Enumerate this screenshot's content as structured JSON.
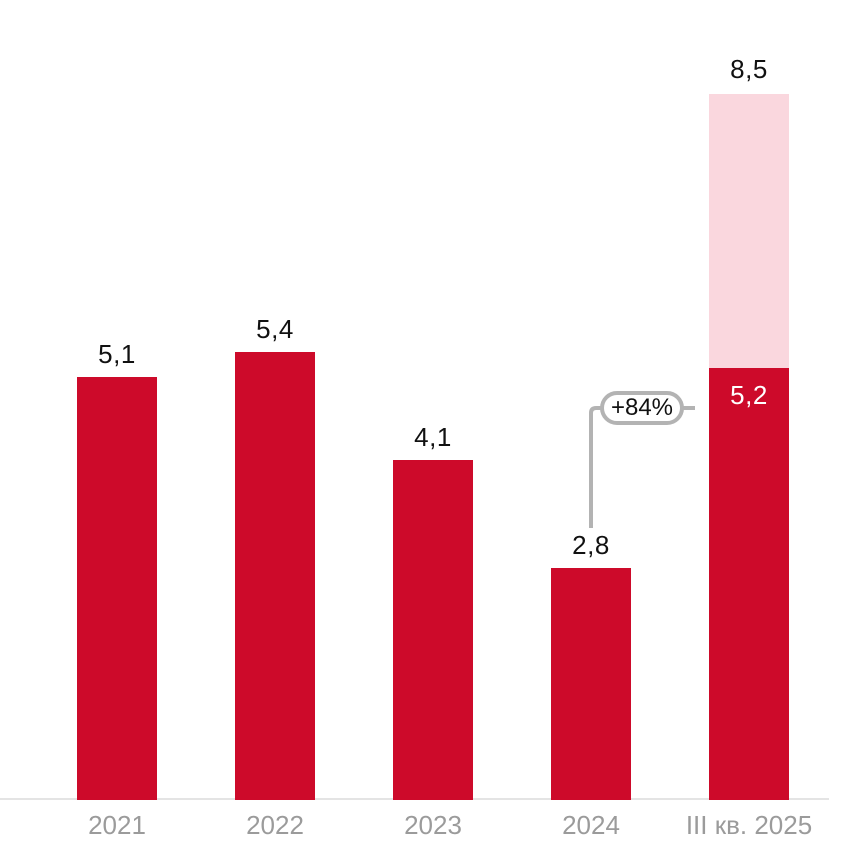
{
  "chart_data": {
    "type": "bar",
    "categories": [
      "2021",
      "2022",
      "2023",
      "2024",
      "III кв. 2025"
    ],
    "series": [
      {
        "name": "actual",
        "values": [
          5.1,
          5.4,
          4.1,
          2.8,
          5.2
        ]
      },
      {
        "name": "stack-extension",
        "values": [
          0,
          0,
          0,
          0,
          3.3
        ]
      }
    ],
    "bar_labels": [
      "5,1",
      "5,4",
      "4,1",
      "2,8",
      "5,2"
    ],
    "stack_total_value": 8.5,
    "stack_total_label": "8,5",
    "annotation": {
      "text": "+84%",
      "from_category": "2024",
      "to_category": "III кв. 2025"
    },
    "title": "",
    "xlabel": "",
    "ylabel": "",
    "ylim": [
      0,
      9.6
    ],
    "grid": false,
    "legend": false,
    "colors": {
      "bar": "#cd0a2a",
      "stack_top": "#fad7de",
      "value_label": "#111111",
      "value_label_inside": "#ffffff",
      "axis_label": "#9b9b9b",
      "axis_line": "#e4e4e4",
      "callout": "#b3b3b3"
    }
  }
}
